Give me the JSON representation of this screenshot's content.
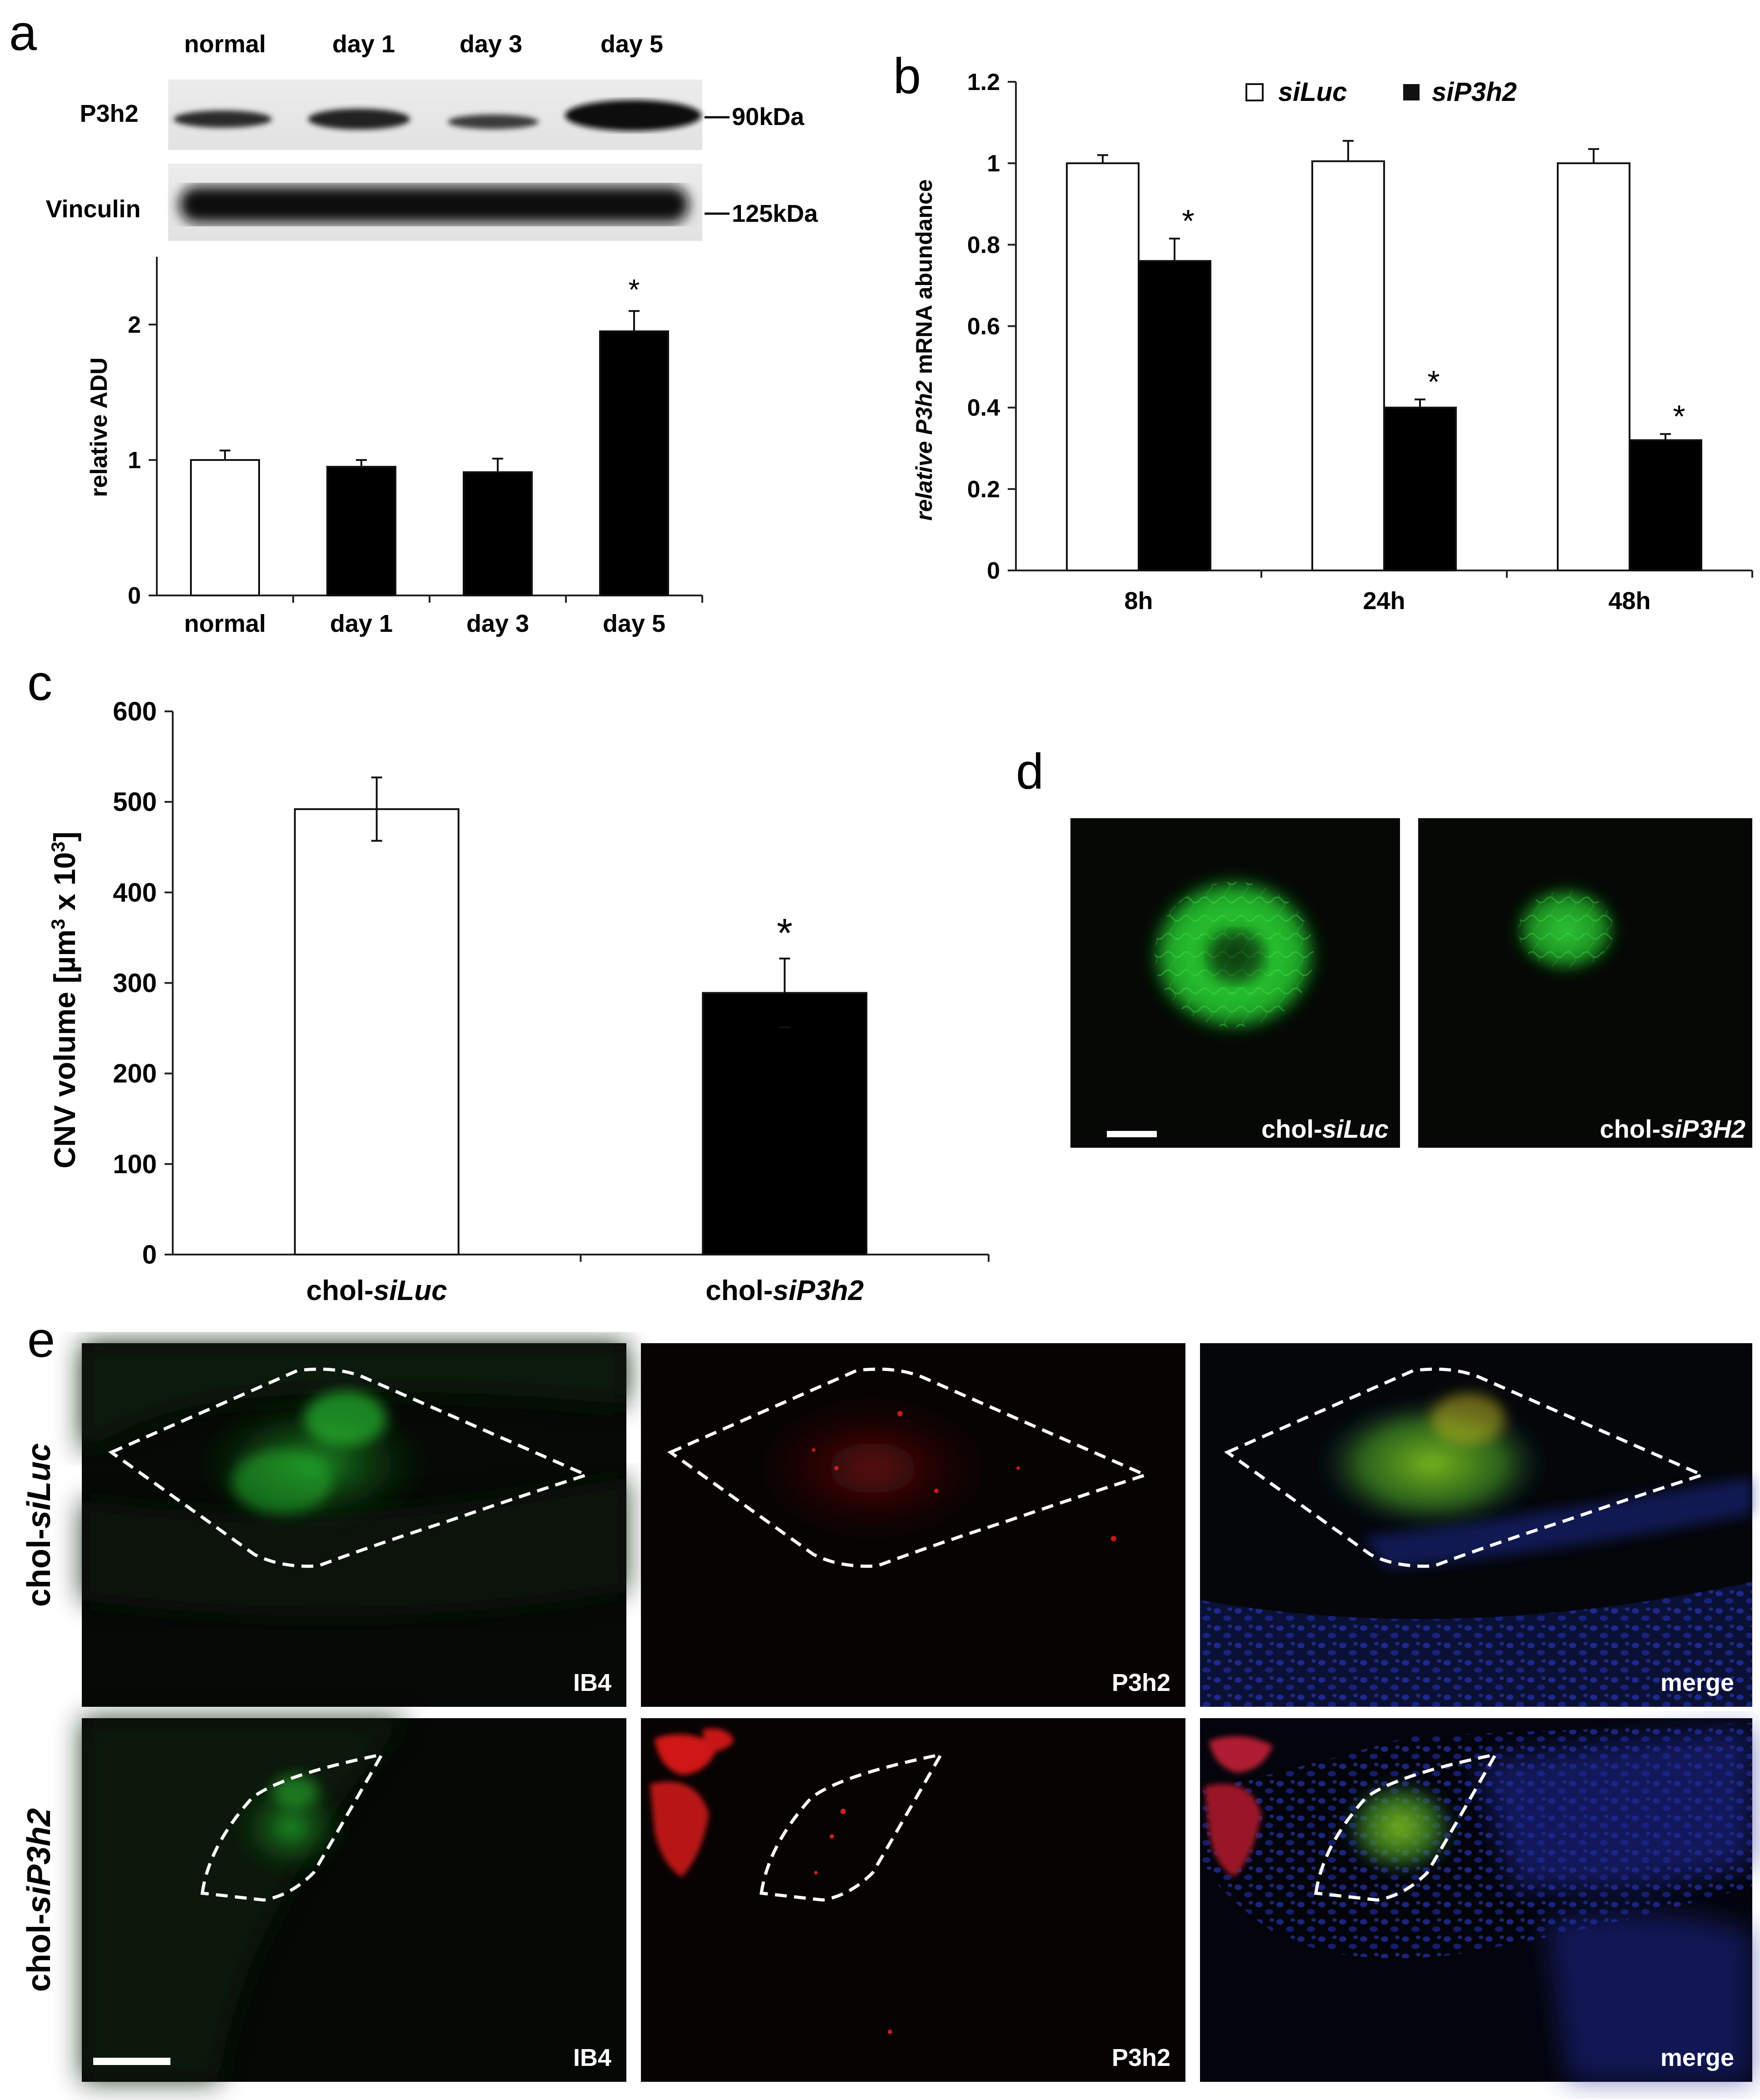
{
  "panels": {
    "a": {
      "letter": "a",
      "blot_lanes": [
        "normal",
        "day 1",
        "day 3",
        "day 5"
      ],
      "blot_rows": [
        {
          "name": "P3h2",
          "size": "90kDa"
        },
        {
          "name": "Vinculin",
          "size": "125kDa"
        }
      ],
      "chart_data": {
        "type": "bar",
        "categories": [
          "normal",
          "day 1",
          "day 3",
          "day 5"
        ],
        "values": [
          1.0,
          0.95,
          0.91,
          1.95
        ],
        "errors": [
          0.07,
          0.05,
          0.1,
          0.15
        ],
        "fills": [
          "#ffffff",
          "#000000",
          "#000000",
          "#000000"
        ],
        "significance": [
          "",
          "",
          "",
          "*"
        ],
        "xlabel": "",
        "ylabel": "relative ADU",
        "ylim": [
          0,
          2.5
        ],
        "yticks": [
          0,
          1,
          2
        ]
      }
    },
    "b": {
      "letter": "b",
      "chart_data": {
        "type": "bar",
        "categories": [
          "8h",
          "24h",
          "48h"
        ],
        "series": [
          {
            "name": "siLuc",
            "fill": "#ffffff",
            "values": [
              1.0,
              1.005,
              1.0
            ],
            "errors": [
              0.02,
              0.05,
              0.035
            ],
            "significance": [
              "",
              "",
              ""
            ]
          },
          {
            "name": "siP3h2",
            "fill": "#000000",
            "values": [
              0.76,
              0.4,
              0.32
            ],
            "errors": [
              0.055,
              0.02,
              0.015
            ],
            "significance": [
              "*",
              "*",
              "*"
            ]
          }
        ],
        "ylabel_italic": "relative P3h2",
        "ylabel_rest": " mRNA abundance",
        "ylim": [
          0,
          1.2
        ],
        "yticks": [
          "0",
          "0.2",
          "0.4",
          "0.6",
          "0.8",
          "1",
          "1.2"
        ],
        "legend": "top"
      }
    },
    "c": {
      "letter": "c",
      "chart_data": {
        "type": "bar",
        "categories": [
          {
            "prefix": "chol-",
            "italic": "siLuc"
          },
          {
            "prefix": "chol-",
            "italic": "siP3h2"
          }
        ],
        "values": [
          492,
          289
        ],
        "errors": [
          35,
          38
        ],
        "fills": [
          "#ffffff",
          "#000000"
        ],
        "significance": [
          "",
          "*"
        ],
        "ylabel": "CNV volume [µm",
        "ylabel_sup": "3",
        "ylabel_mid": " x 10",
        "ylabel_sup2": "3",
        "ylabel_end": "]",
        "ylim": [
          0,
          600
        ],
        "yticks": [
          "0",
          "100",
          "200",
          "300",
          "400",
          "500",
          "600"
        ]
      }
    },
    "d": {
      "letter": "d",
      "images": [
        {
          "prefix": "chol-",
          "italic": "siLuc"
        },
        {
          "prefix": "chol-",
          "italic": "siP3H2"
        }
      ]
    },
    "e": {
      "letter": "e",
      "rows": [
        {
          "prefix": "chol-",
          "italic": "siLuc"
        },
        {
          "prefix": "chol-",
          "italic": "siP3h2"
        }
      ],
      "channels": [
        "IB4",
        "P3h2",
        "merge"
      ]
    }
  },
  "colors": {
    "green_stain": "#1fd12a",
    "red_stain": "#e01818",
    "blue_stain": "#2a3ac8",
    "background": "#000000"
  }
}
